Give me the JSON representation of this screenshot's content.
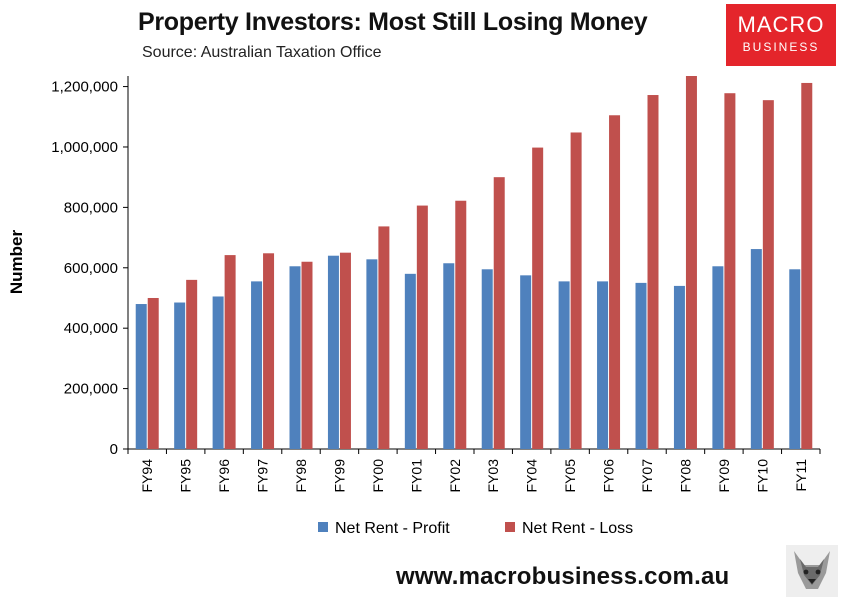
{
  "header": {
    "title": "Property Investors: Most Still Losing Money",
    "subtitle": "Source: Australian Taxation Office"
  },
  "logo": {
    "line1": "MACRO",
    "line2": "BUSINESS",
    "color": "#e4252b"
  },
  "footer": {
    "url": "www.macrobusiness.com.au"
  },
  "colors": {
    "profit": "#4f81bd",
    "loss": "#c0504d",
    "plot_bg": "#ffffff",
    "axis": "#000000"
  },
  "chart_data": {
    "type": "bar",
    "title": "Property Investors: Most Still Losing Money",
    "ylabel": "Number",
    "xlabel": "",
    "ylim": [
      0,
      1235000
    ],
    "yticks": [
      0,
      200000,
      400000,
      600000,
      800000,
      1000000,
      1200000
    ],
    "ytick_labels": [
      "0",
      "200,000",
      "400,000",
      "600,000",
      "800,000",
      "1,000,000",
      "1,200,000"
    ],
    "categories": [
      "FY94",
      "FY95",
      "FY96",
      "FY97",
      "FY98",
      "FY99",
      "FY00",
      "FY01",
      "FY02",
      "FY03",
      "FY04",
      "FY05",
      "FY06",
      "FY07",
      "FY08",
      "FY09",
      "FY10",
      "FY11"
    ],
    "series": [
      {
        "name": "Net Rent - Profit",
        "color": "#4f81bd",
        "values": [
          480000,
          485000,
          505000,
          555000,
          605000,
          640000,
          628000,
          580000,
          615000,
          595000,
          575000,
          555000,
          555000,
          550000,
          540000,
          605000,
          662000,
          595000
        ]
      },
      {
        "name": "Net Rent - Loss",
        "color": "#c0504d",
        "values": [
          500000,
          560000,
          642000,
          648000,
          620000,
          650000,
          737000,
          806000,
          822000,
          900000,
          998000,
          1048000,
          1105000,
          1172000,
          1235000,
          1178000,
          1155000,
          1212000
        ]
      }
    ],
    "legend_position": "bottom",
    "grid": false
  }
}
